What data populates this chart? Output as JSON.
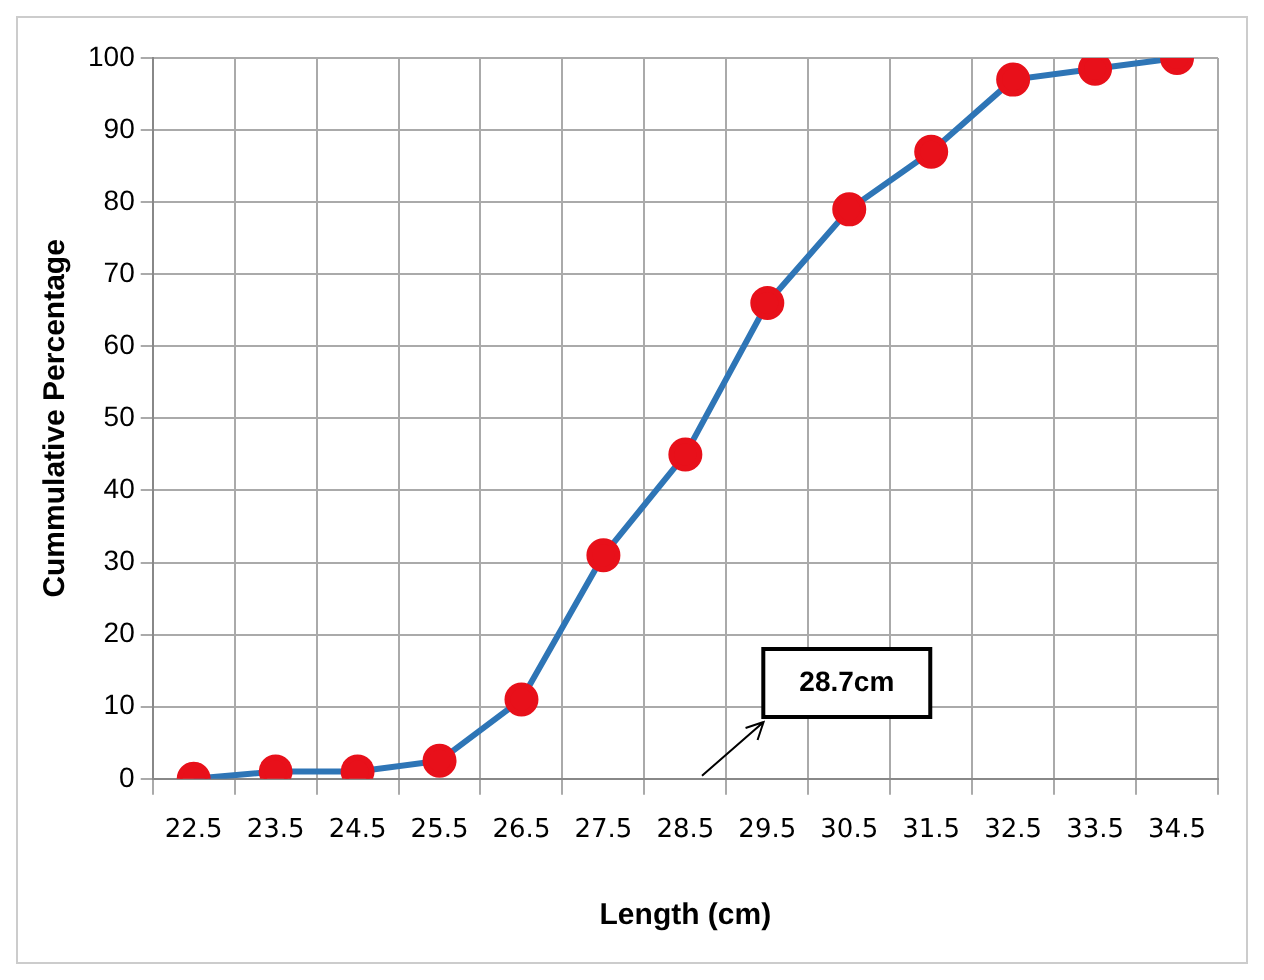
{
  "chart_data": {
    "type": "line",
    "xlabel": "Length (cm)",
    "ylabel": "Cummulative Percentage",
    "categories": [
      "22.5",
      "23.5",
      "24.5",
      "25.5",
      "26.5",
      "27.5",
      "28.5",
      "29.5",
      "30.5",
      "31.5",
      "32.5",
      "33.5",
      "34.5"
    ],
    "series": [
      {
        "color": "#2e75b6",
        "values": [
          0,
          1,
          1,
          2.5,
          11,
          31,
          45,
          66,
          79,
          87,
          97,
          98.5,
          100
        ]
      }
    ],
    "ylim": [
      0,
      100
    ],
    "yticks": [
      0,
      10,
      20,
      30,
      40,
      50,
      60,
      70,
      80,
      90,
      100
    ],
    "grid": true,
    "marker": "circle",
    "line_style": "solid",
    "legend": false,
    "annotations": [
      "28.7cm"
    ]
  }
}
